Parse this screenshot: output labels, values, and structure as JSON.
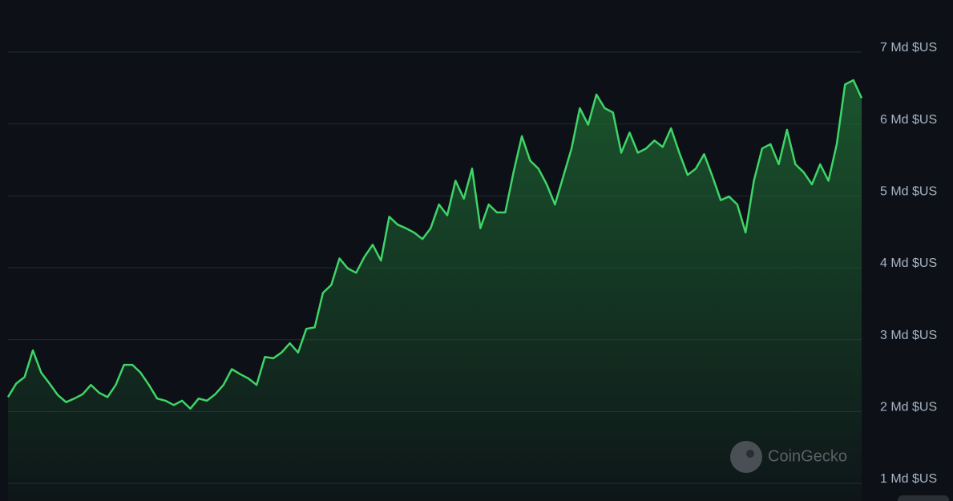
{
  "chart_data": {
    "type": "area",
    "values": [
      2.2,
      2.39,
      2.48,
      2.85,
      2.54,
      2.39,
      2.23,
      2.13,
      2.18,
      2.24,
      2.37,
      2.26,
      2.2,
      2.37,
      2.65,
      2.65,
      2.54,
      2.37,
      2.18,
      2.15,
      2.09,
      2.15,
      2.04,
      2.18,
      2.15,
      2.24,
      2.37,
      2.59,
      2.52,
      2.46,
      2.37,
      2.76,
      2.74,
      2.82,
      2.95,
      2.82,
      3.15,
      3.17,
      3.65,
      3.76,
      4.13,
      3.99,
      3.93,
      4.15,
      4.32,
      4.1,
      4.71,
      4.6,
      4.55,
      4.49,
      4.4,
      4.55,
      4.88,
      4.73,
      5.21,
      4.96,
      5.38,
      4.55,
      4.88,
      4.77,
      4.77,
      5.33,
      5.83,
      5.49,
      5.38,
      5.16,
      4.88,
      5.27,
      5.66,
      6.22,
      5.99,
      6.41,
      6.22,
      6.16,
      5.6,
      5.88,
      5.6,
      5.66,
      5.77,
      5.68,
      5.94,
      5.6,
      5.29,
      5.38,
      5.58,
      5.27,
      4.94,
      4.99,
      4.88,
      4.49,
      5.21,
      5.66,
      5.72,
      5.44,
      5.92,
      5.44,
      5.33,
      5.16,
      5.44,
      5.21,
      5.72,
      6.55,
      6.61,
      6.36
    ],
    "color": "#3fd467",
    "ylim": [
      0.755,
      7.725
    ],
    "yticks": [
      {
        "value": 1,
        "label": "1 Md $US"
      },
      {
        "value": 2,
        "label": "2 Md $US"
      },
      {
        "value": 3,
        "label": "3 Md $US"
      },
      {
        "value": 4,
        "label": "4 Md $US"
      },
      {
        "value": 5,
        "label": "5 Md $US"
      },
      {
        "value": 6,
        "label": "6 Md $US"
      },
      {
        "value": 7,
        "label": "7 Md $US"
      }
    ],
    "grid": true,
    "watermark": "CoinGecko"
  }
}
